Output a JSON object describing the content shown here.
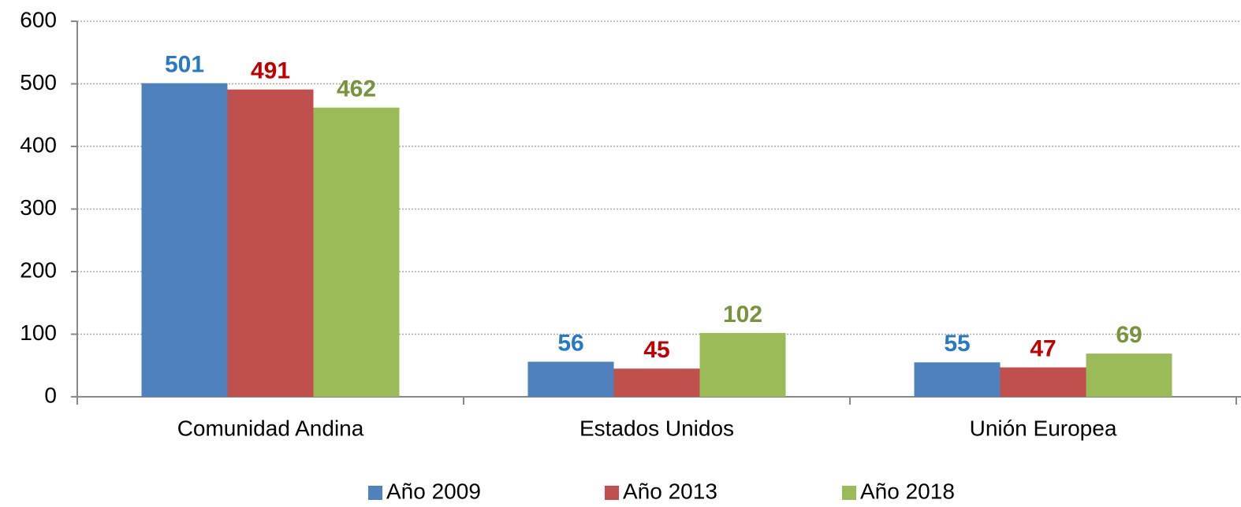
{
  "chart_data": {
    "type": "bar",
    "categories": [
      "Comunidad Andina",
      "Estados Unidos",
      "Unión Europea"
    ],
    "series": [
      {
        "name": "Año 2009",
        "color": "#4f81bd",
        "label_color": "#2878c8",
        "values": [
          501,
          56,
          55
        ]
      },
      {
        "name": "Año 2013",
        "color": "#c0504d",
        "label_color": "#c00000",
        "values": [
          491,
          45,
          47
        ]
      },
      {
        "name": "Año 2018",
        "color": "#9bbb59",
        "label_color": "#77933c",
        "values": [
          462,
          102,
          69
        ]
      }
    ],
    "ylim": [
      0,
      600
    ],
    "yticks": [
      0,
      100,
      200,
      300,
      400,
      500,
      600
    ],
    "grid": true,
    "legend": "bottom"
  }
}
